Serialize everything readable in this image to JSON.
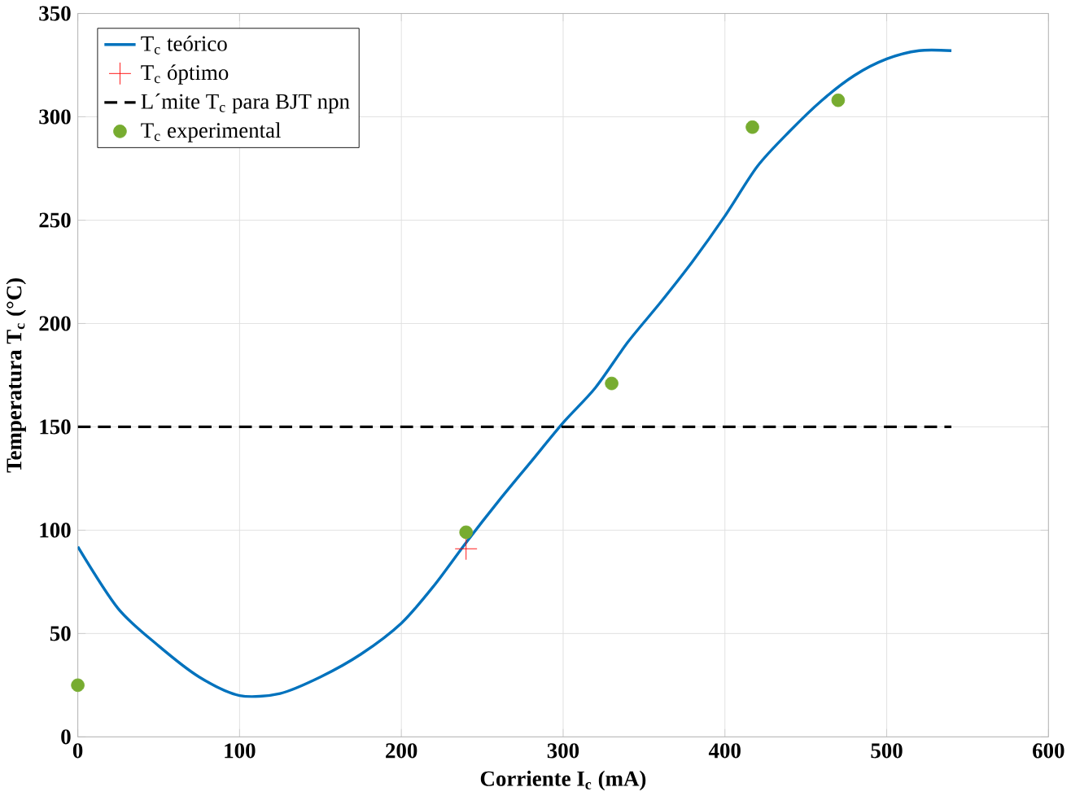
{
  "chart_data": {
    "type": "line",
    "xlabel": "Corriente I$_{c}$ (mA)",
    "ylabel": "Temperatura T$_{c}$ (°C)",
    "xlim": [
      0,
      600
    ],
    "ylim": [
      0,
      350
    ],
    "xticks": [
      0,
      100,
      200,
      300,
      400,
      500,
      600
    ],
    "yticks": [
      0,
      50,
      100,
      150,
      200,
      250,
      300,
      350
    ],
    "grid": true,
    "legend": "top left",
    "series": [
      {
        "name": "T$_{c}$ teórico",
        "color": "#0072bd",
        "marker": "none",
        "line_style": "solid",
        "x": [
          0,
          25,
          50,
          75,
          100,
          125,
          150,
          175,
          200,
          220,
          240,
          260,
          280,
          300,
          320,
          340,
          360,
          380,
          400,
          420,
          440,
          460,
          480,
          500,
          520,
          540
        ],
        "values": [
          92,
          62,
          44,
          29,
          20,
          21,
          29,
          40,
          55,
          73,
          94,
          114,
          133,
          152,
          169,
          191,
          210,
          230,
          252,
          276,
          293,
          308,
          320,
          328,
          332,
          332
        ]
      },
      {
        "name": "T$_{c}$ óptimo",
        "type": "scatter",
        "color": "#ff0000",
        "marker": "cross",
        "x": [
          240
        ],
        "values": [
          91
        ]
      },
      {
        "name": "L´mite T$_{c}$ para BJT npn",
        "color": "#000000",
        "marker": "none",
        "line_style": "dashed",
        "x": [
          0,
          540
        ],
        "values": [
          150,
          150
        ]
      },
      {
        "name": "T$_{c}$ experimental",
        "type": "scatter",
        "color": "#77ac30",
        "marker": "circle",
        "x": [
          0,
          240,
          330,
          417,
          470
        ],
        "values": [
          25,
          99,
          171,
          295,
          308
        ]
      }
    ]
  }
}
